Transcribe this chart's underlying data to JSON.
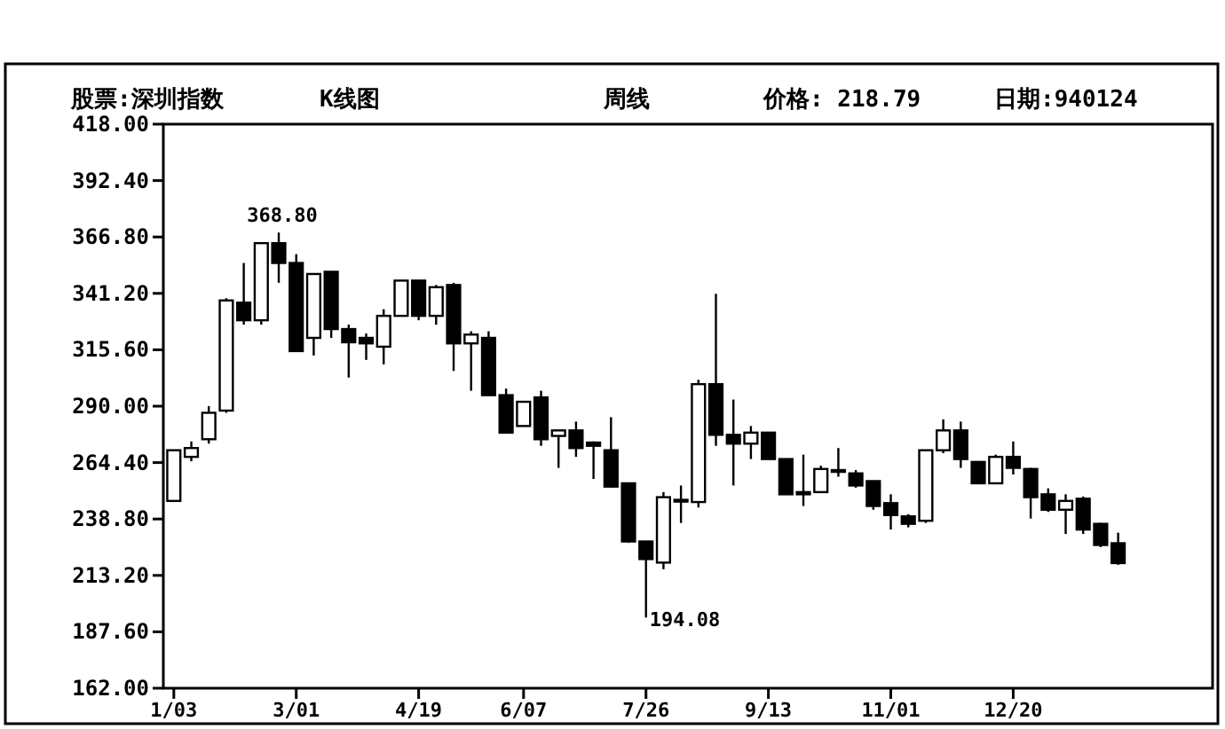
{
  "chart_data": {
    "type": "candlestick",
    "annotations": [
      "股票:深圳指数",
      "K线图",
      "周线",
      "价格: 218.79",
      "日期:940124",
      "368.80",
      "194.08"
    ],
    "categories": [
      "1/03",
      null,
      null,
      null,
      null,
      null,
      null,
      "3/01",
      null,
      null,
      null,
      null,
      null,
      null,
      "4/19",
      null,
      null,
      null,
      null,
      null,
      "6/07",
      null,
      null,
      null,
      null,
      null,
      null,
      "7/26",
      null,
      null,
      null,
      null,
      null,
      null,
      "9/13",
      null,
      null,
      null,
      null,
      null,
      null,
      "11/01",
      null,
      null,
      null,
      null,
      null,
      null,
      "12/20",
      null,
      null,
      null,
      null,
      null,
      null
    ],
    "ohlc": [
      [
        247,
        270,
        247,
        270
      ],
      [
        267,
        274,
        265,
        271
      ],
      [
        275,
        290,
        273,
        287
      ],
      [
        288,
        339,
        287,
        338
      ],
      [
        337,
        355,
        327,
        329
      ],
      [
        329,
        364,
        327,
        364
      ],
      [
        364,
        368.8,
        346,
        355
      ],
      [
        355,
        359,
        315,
        315
      ],
      [
        321,
        350,
        313,
        350
      ],
      [
        351,
        351,
        321,
        325
      ],
      [
        325,
        327,
        303,
        319
      ],
      [
        321,
        323,
        311,
        318.5
      ],
      [
        317,
        334,
        309,
        331
      ],
      [
        331,
        347,
        331,
        347
      ],
      [
        347,
        347,
        329,
        331
      ],
      [
        331,
        345,
        327,
        344
      ],
      [
        345,
        346,
        306,
        318.5
      ],
      [
        318.5,
        324,
        297,
        322.5
      ],
      [
        321,
        324,
        295,
        295
      ],
      [
        295,
        298,
        278,
        278
      ],
      [
        281,
        292,
        281,
        292
      ],
      [
        294,
        297,
        272,
        275
      ],
      [
        276.5,
        279,
        262,
        279
      ],
      [
        279,
        283,
        267,
        271
      ],
      [
        273.5,
        274,
        257,
        272
      ],
      [
        270,
        285,
        253,
        253.5
      ],
      [
        255,
        255,
        228,
        228.6
      ],
      [
        228.6,
        228.6,
        194.08,
        220.6
      ],
      [
        219,
        251,
        216,
        248.7
      ],
      [
        247,
        254,
        237,
        247.5
      ],
      [
        246.5,
        302,
        244,
        300
      ],
      [
        300,
        341,
        272,
        277
      ],
      [
        277,
        293,
        254,
        273
      ],
      [
        273,
        281,
        266,
        278
      ],
      [
        278,
        278,
        266,
        266
      ],
      [
        266,
        266,
        250,
        250
      ],
      [
        251,
        268,
        244.7,
        250
      ],
      [
        251,
        263,
        251,
        261.5
      ],
      [
        261,
        271,
        258,
        260.8
      ],
      [
        259.5,
        261,
        253,
        254
      ],
      [
        256,
        256,
        243,
        244.7
      ],
      [
        246,
        250,
        234,
        240.6
      ],
      [
        240,
        241,
        235,
        236.6
      ],
      [
        238,
        270,
        237,
        270
      ],
      [
        270,
        284,
        268.7,
        279
      ],
      [
        279,
        283,
        262,
        266
      ],
      [
        264.7,
        265,
        255,
        255
      ],
      [
        255,
        268,
        255,
        267
      ],
      [
        267,
        274,
        259,
        262
      ],
      [
        261.5,
        262,
        239,
        248.7
      ],
      [
        250,
        252.7,
        242,
        243
      ],
      [
        243,
        250,
        232,
        247
      ],
      [
        248,
        249,
        232,
        234
      ],
      [
        236.6,
        237,
        226,
        227
      ],
      [
        227.8,
        232.6,
        218,
        218.79
      ]
    ],
    "ylim": [
      162,
      418
    ],
    "yticks": [
      {
        "value": 162,
        "label": "162.00"
      },
      {
        "value": 187.6,
        "label": "187.60"
      },
      {
        "value": 213.2,
        "label": "213.20"
      },
      {
        "value": 238.8,
        "label": "238.80"
      },
      {
        "value": 264.4,
        "label": "264.40"
      },
      {
        "value": 290,
        "label": "290.00"
      },
      {
        "value": 315.6,
        "label": "315.60"
      },
      {
        "value": 341.2,
        "label": "341.20"
      },
      {
        "value": 366.8,
        "label": "366.80"
      },
      {
        "value": 392.4,
        "label": "392.40"
      },
      {
        "value": 418,
        "label": "418.00"
      }
    ],
    "grid": false
  }
}
